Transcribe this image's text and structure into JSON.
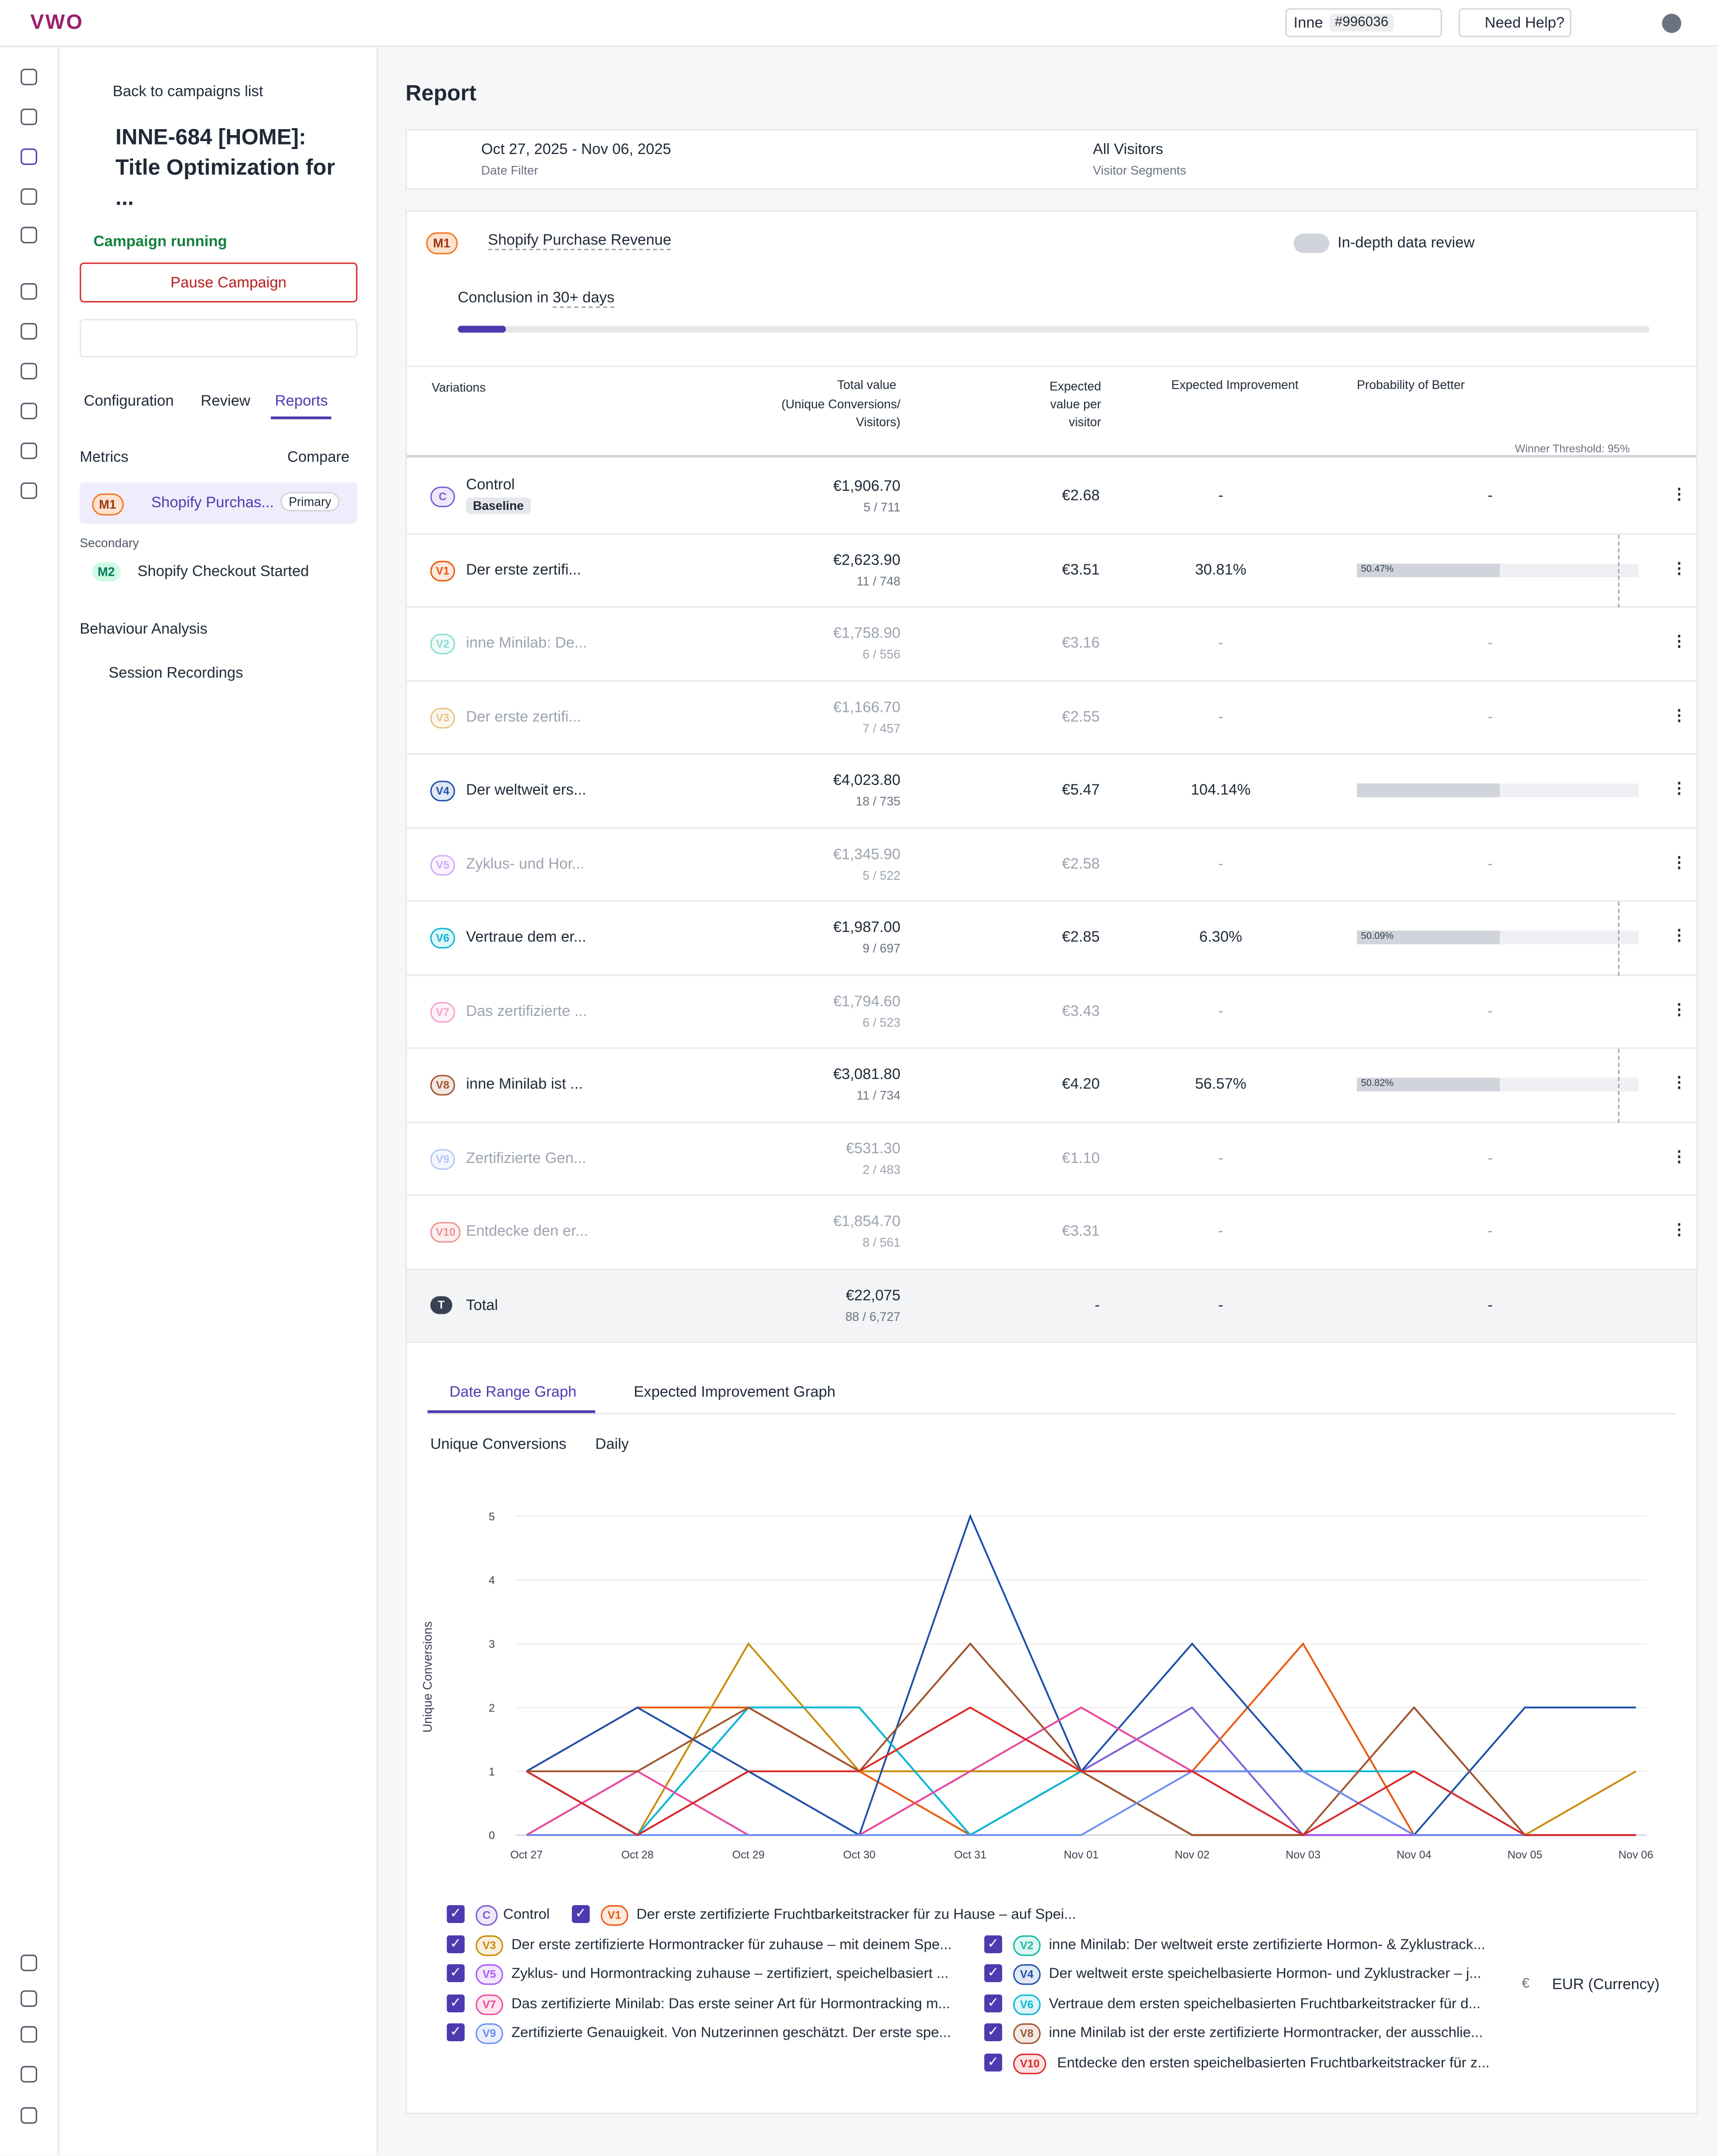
{
  "header": {
    "logo": "VWO",
    "account": "Inne",
    "account_id": "#996036",
    "help": "Need Help?"
  },
  "sidebar": {
    "back": "Back to campaigns list",
    "title": "INNE-684 [HOME]: Title Optimization for ...",
    "status": "Campaign running",
    "pause": "Pause Campaign",
    "tabs": [
      "Configuration",
      "Review",
      "Reports"
    ],
    "metrics_label": "Metrics",
    "compare": "Compare",
    "primary_badge": "M1",
    "primary_name": "Shopify Purchas...",
    "primary_tag": "Primary",
    "secondary_label": "Secondary",
    "secondary_badge": "M2",
    "secondary_name": "Shopify Checkout Started",
    "behaviour": "Behaviour Analysis",
    "recordings": "Session Recordings"
  },
  "report": {
    "title": "Report",
    "date_range": "Oct 27, 2025 - Nov 06, 2025",
    "date_label": "Date Filter",
    "segment": "All Visitors",
    "segment_label": "Visitor Segments",
    "metric_badge": "M1",
    "metric_name": "Shopify Purchase Revenue",
    "toggle": "In-depth data review",
    "conclusion": "Conclusion in",
    "conclusion_days": "30+ days"
  },
  "table": {
    "headers": [
      "Variations",
      "Total value",
      "(Unique Conversions/ Visitors)",
      "Expected value per visitor",
      "Expected Improvement",
      "Probability of Better"
    ],
    "threshold": "Winner Threshold: 95%",
    "baseline": "Baseline",
    "rows": [
      [
        "C",
        "Control",
        "€1,906.70",
        "5 / 711",
        "€2.68",
        "-",
        "-"
      ],
      [
        "V1",
        "Der erste zertifi...",
        "€2,623.90",
        "11 / 748",
        "€3.51",
        "30.81%",
        "50.47%"
      ],
      [
        "V2",
        "inne Minilab: De...",
        "€1,758.90",
        "6 / 556",
        "€3.16",
        "-",
        "-"
      ],
      [
        "V3",
        "Der erste zertifi...",
        "€1,166.70",
        "7 / 457",
        "€2.55",
        "-",
        "-"
      ],
      [
        "V4",
        "Der weltweit ers...",
        "€4,023.80",
        "18 / 735",
        "€5.47",
        "104.14%",
        null
      ],
      [
        "V5",
        "Zyklus- und Hor...",
        "€1,345.90",
        "5 / 522",
        "€2.58",
        "-",
        "-"
      ],
      [
        "V6",
        "Vertraue dem er...",
        "€1,987.00",
        "9 / 697",
        "€2.85",
        "6.30%",
        "50.09%"
      ],
      [
        "V7",
        "Das zertifizierte ...",
        "€1,794.60",
        "6 / 523",
        "€3.43",
        "-",
        "-"
      ],
      [
        "V8",
        "inne Minilab ist ...",
        "€3,081.80",
        "11 / 734",
        "€4.20",
        "56.57%",
        "50.82%"
      ],
      [
        "V9",
        "Zertifizierte Gen...",
        "€531.30",
        "2 / 483",
        "€1.10",
        "-",
        "-"
      ],
      [
        "V10",
        "Entdecke den er...",
        "€1,854.70",
        "8 / 561",
        "€3.31",
        "-",
        "-"
      ]
    ],
    "total": [
      "T",
      "Total",
      "€22,075",
      "88 / 6,727",
      "-",
      "-",
      "-"
    ]
  },
  "graph": {
    "type": "line",
    "tabs": [
      "Date Range Graph",
      "Expected Improvement Graph"
    ],
    "metric": "Unique Conversions",
    "interval": "Daily",
    "y_label": "Unique Conversions",
    "currency_symbol": "€",
    "currency": "EUR (Currency)",
    "x": [
      "Oct 27",
      "Oct 28",
      "Oct 29",
      "Oct 30",
      "Oct 31",
      "Nov 01",
      "Nov 02",
      "Nov 03",
      "Nov 04",
      "Nov 05",
      "Nov 06"
    ],
    "ylim": [
      0,
      5
    ],
    "yticks": [
      0,
      1,
      2,
      3,
      4,
      5
    ],
    "series": [
      {
        "badge": "C",
        "name": "Control",
        "color": "#7c5cd6",
        "values": [
          0,
          0,
          1,
          0,
          1,
          1,
          2,
          0,
          0,
          0,
          0
        ]
      },
      {
        "badge": "V1",
        "name": "Der erste zertifizierte Fruchtbarkeitstracker für zu Hause – auf Spei...",
        "color": "#ea580c",
        "values": [
          1,
          2,
          2,
          1,
          0,
          1,
          1,
          3,
          0,
          0,
          0
        ]
      },
      {
        "badge": "V2",
        "name": "inne Minilab: Der weltweit erste zertifizierte Hormon- & Zyklustrack...",
        "color": "#14b8a6",
        "values": [
          1,
          0,
          2,
          2,
          0,
          1,
          0,
          0,
          0,
          0,
          0
        ]
      },
      {
        "badge": "V3",
        "name": "Der erste zertifizierte Hormontracker für zuhause – mit deinem Spe...",
        "color": "#ca8a04",
        "values": [
          0,
          0,
          3,
          1,
          1,
          1,
          0,
          0,
          0,
          0,
          1
        ]
      },
      {
        "badge": "V4",
        "name": "Der weltweit erste speichelbasierte Hormon- und Zyklustracker – j...",
        "color": "#1e4fa8",
        "values": [
          1,
          2,
          1,
          0,
          5,
          1,
          3,
          1,
          0,
          2,
          2
        ]
      },
      {
        "badge": "V5",
        "name": "Zyklus- und Hormontracking zuhause – zertifiziert, speichelbasiert ...",
        "color": "#a855f7",
        "values": [
          0,
          1,
          0,
          0,
          1,
          2,
          1,
          0,
          0,
          0,
          0
        ]
      },
      {
        "badge": "V6",
        "name": "Vertraue dem ersten speichelbasierten Fruchtbarkeitstracker für d...",
        "color": "#06b6d4",
        "values": [
          1,
          0,
          2,
          2,
          0,
          1,
          1,
          1,
          1,
          0,
          0
        ]
      },
      {
        "badge": "V7",
        "name": "Das zertifizierte Minilab: Das erste seiner Art für Hormontracking m...",
        "color": "#ec4899",
        "values": [
          0,
          1,
          0,
          0,
          1,
          2,
          1,
          1,
          0,
          0,
          0
        ]
      },
      {
        "badge": "V8",
        "name": "inne Minilab ist der erste zertifizierte Hormontracker, der ausschlie...",
        "color": "#a0522d",
        "values": [
          1,
          1,
          2,
          1,
          3,
          1,
          0,
          0,
          2,
          0,
          0
        ]
      },
      {
        "badge": "V9",
        "name": "Zertifizierte Genauigkeit. Von Nutzerinnen geschätzt. Der erste spe...",
        "color": "#6b8ff0",
        "values": [
          0,
          0,
          0,
          0,
          0,
          0,
          1,
          1,
          0,
          0,
          0
        ]
      },
      {
        "badge": "V10",
        "name": "Entdecke den ersten speichelbasierten Fruchtbarkeitstracker für z...",
        "color": "#dc2626",
        "values": [
          1,
          0,
          1,
          1,
          2,
          1,
          1,
          0,
          1,
          0,
          0
        ]
      }
    ]
  }
}
